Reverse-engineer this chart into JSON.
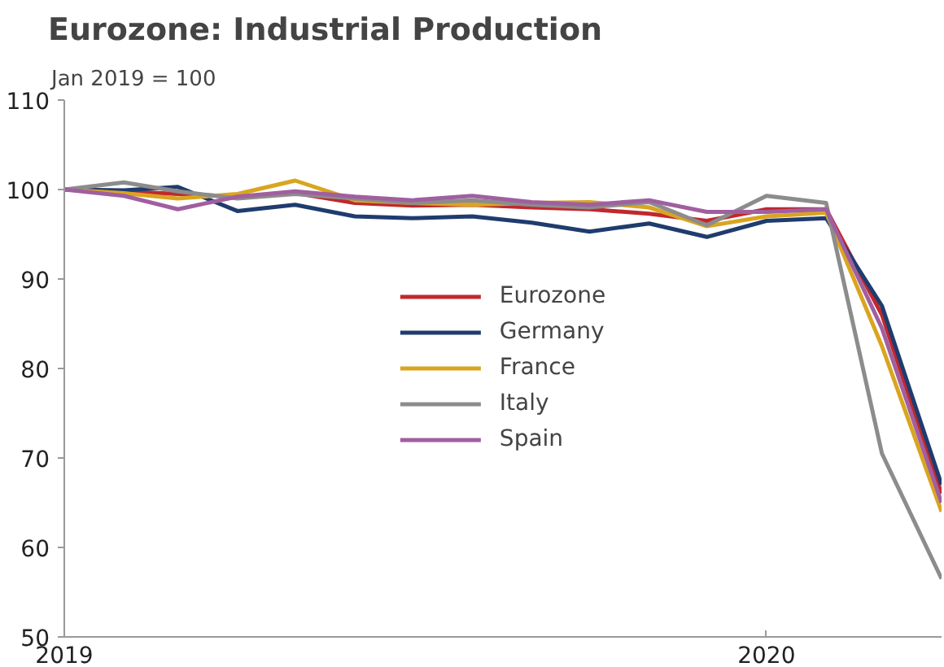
{
  "chart_data": {
    "type": "line",
    "title": "Eurozone: Industrial Production",
    "subtitle": "Jan 2019 = 100",
    "x": [
      "2019-01",
      "2019-02",
      "2019-03",
      "2019-04",
      "2019-05",
      "2019-06",
      "2019-07",
      "2019-08",
      "2019-09",
      "2019-10",
      "2019-11",
      "2019-12",
      "2020-01",
      "2020-02",
      "2020-03",
      "2020-04"
    ],
    "series": [
      {
        "name": "Eurozone",
        "color": "#c0282d",
        "values": [
          100,
          99.8,
          99.5,
          99.2,
          99.6,
          98.5,
          98.2,
          98.3,
          98.0,
          97.8,
          97.3,
          96.5,
          97.8,
          97.8,
          86,
          66
        ]
      },
      {
        "name": "Germany",
        "color": "#1f3c6e",
        "values": [
          100,
          99.9,
          100.3,
          97.6,
          98.3,
          97.0,
          96.8,
          97.0,
          96.3,
          95.3,
          96.2,
          94.7,
          96.5,
          96.8,
          87,
          67
        ]
      },
      {
        "name": "France",
        "color": "#d9a520",
        "values": [
          100,
          99.6,
          99.0,
          99.5,
          101.0,
          98.8,
          98.5,
          98.3,
          98.5,
          98.6,
          98.0,
          95.9,
          97.0,
          97.4,
          82.5,
          64
        ]
      },
      {
        "name": "Italy",
        "color": "#8c8c8c",
        "values": [
          100,
          100.8,
          99.8,
          99.0,
          99.5,
          99.0,
          98.5,
          98.8,
          98.3,
          98.0,
          98.6,
          96.0,
          99.3,
          98.5,
          70.5,
          56.5
        ]
      },
      {
        "name": "Spain",
        "color": "#a05fa0",
        "values": [
          100,
          99.3,
          97.8,
          99.2,
          99.8,
          99.2,
          98.8,
          99.3,
          98.6,
          98.3,
          98.8,
          97.5,
          97.5,
          97.8,
          84.5,
          65
        ]
      }
    ],
    "xlim": [
      "2019-01",
      "2020-04"
    ],
    "xticks": [
      "2019",
      "2020"
    ],
    "ylim": [
      50,
      110
    ],
    "yticks": [
      50,
      60,
      70,
      80,
      90,
      100,
      110
    ],
    "grid": false,
    "legend": "center",
    "line_style": "solid",
    "marker": "none"
  }
}
